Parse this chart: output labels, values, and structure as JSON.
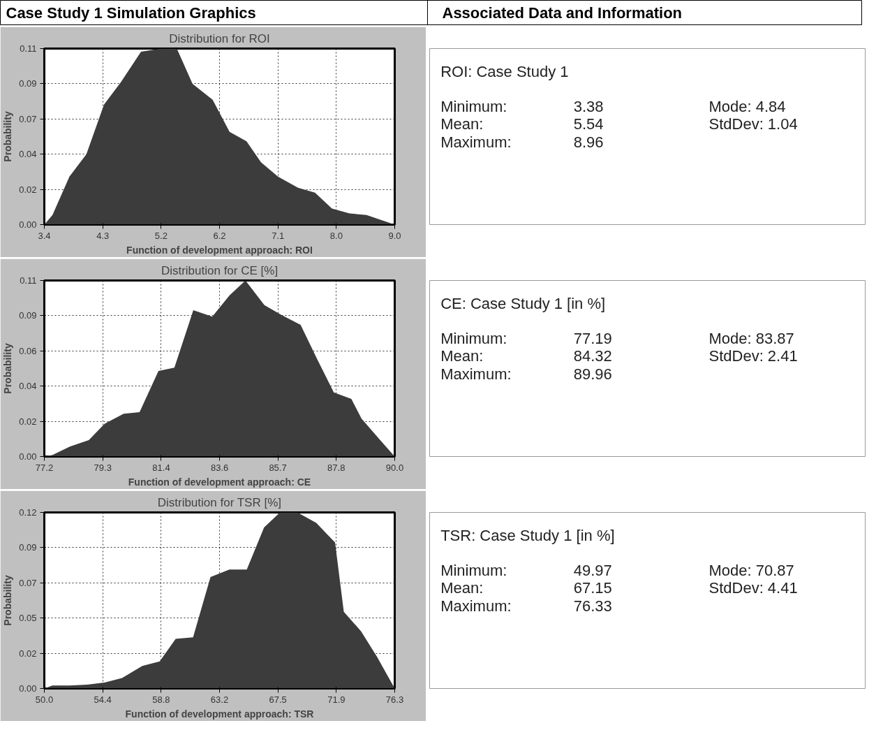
{
  "chart_data": [
    {
      "type": "area",
      "title": "Distribution for ROI",
      "xlabel": "Function of development approach: ROI",
      "ylabel": "Probability",
      "annotations": [
        "Case Study 1 Simulation Graphics"
      ],
      "color": "#3c3c3c",
      "grid": true,
      "x": [
        3.38,
        3.51,
        3.78,
        4.05,
        4.33,
        4.6,
        4.92,
        5.24,
        5.49,
        5.74,
        6.06,
        6.33,
        6.6,
        6.83,
        7.1,
        7.42,
        7.69,
        7.96,
        8.24,
        8.51,
        8.96
      ],
      "values": [
        0,
        0.006,
        0.03,
        0.044,
        0.075,
        0.089,
        0.108,
        0.11,
        0.11,
        0.088,
        0.078,
        0.058,
        0.052,
        0.039,
        0.03,
        0.023,
        0.02,
        0.01,
        0.007,
        0.006,
        0
      ],
      "xlim": [
        3.38,
        8.96
      ],
      "ylim": [
        0,
        0.11
      ],
      "xticks": [
        {
          "value": 3.38,
          "label": "3.4"
        },
        {
          "value": 4.31,
          "label": "4.3"
        },
        {
          "value": 5.24,
          "label": "5.2"
        },
        {
          "value": 6.17,
          "label": "6.2"
        },
        {
          "value": 7.1,
          "label": "7.1"
        },
        {
          "value": 8.03,
          "label": "8.0"
        },
        {
          "value": 8.96,
          "label": "9.0"
        }
      ],
      "yticks": [
        {
          "value": 0,
          "label": "0.00"
        },
        {
          "value": 0.022,
          "label": "0.02"
        },
        {
          "value": 0.044,
          "label": "0.04"
        },
        {
          "value": 0.066,
          "label": "0.07"
        },
        {
          "value": 0.088,
          "label": "0.09"
        },
        {
          "value": 0.11,
          "label": "0.11"
        }
      ]
    },
    {
      "type": "other",
      "title": "Associated Data and Information",
      "subtitle": "ROI: Case Study 1",
      "annotations": [
        "Minimum:",
        "3.38",
        "Mode: 4.84",
        "Mean:",
        "5.54",
        "StdDev: 1.04",
        "Maximum:",
        "8.96"
      ]
    },
    {
      "type": "area",
      "title": "Distribution for CE [%]",
      "xlabel": "Function of development approach: CE",
      "ylabel": "Probability",
      "color": "#3c3c3c",
      "grid": true,
      "x": [
        77.19,
        77.49,
        78.12,
        78.81,
        79.39,
        80.08,
        80.66,
        81.35,
        81.93,
        82.62,
        83.31,
        83.94,
        84.52,
        85.21,
        85.84,
        86.53,
        87.11,
        87.74,
        88.38,
        88.75,
        89.43,
        89.96
      ],
      "values": [
        0,
        0.001,
        0.006,
        0.01,
        0.02,
        0.026,
        0.027,
        0.052,
        0.054,
        0.089,
        0.085,
        0.098,
        0.107,
        0.092,
        0.086,
        0.08,
        0.06,
        0.039,
        0.035,
        0.023,
        0.01,
        0
      ],
      "xlim": [
        77.19,
        89.96
      ],
      "ylim": [
        0,
        0.107
      ],
      "xticks": [
        {
          "value": 77.19,
          "label": "77.2"
        },
        {
          "value": 79.32,
          "label": "79.3"
        },
        {
          "value": 81.45,
          "label": "81.4"
        },
        {
          "value": 83.58,
          "label": "83.6"
        },
        {
          "value": 85.7,
          "label": "85.7"
        },
        {
          "value": 87.83,
          "label": "87.8"
        },
        {
          "value": 89.96,
          "label": "90.0"
        }
      ],
      "yticks": [
        {
          "value": 0,
          "label": "0.00"
        },
        {
          "value": 0.0214,
          "label": "0.02"
        },
        {
          "value": 0.0428,
          "label": "0.04"
        },
        {
          "value": 0.0642,
          "label": "0.06"
        },
        {
          "value": 0.0856,
          "label": "0.09"
        },
        {
          "value": 0.107,
          "label": "0.11"
        }
      ]
    },
    {
      "type": "other",
      "subtitle": "CE: Case Study 1 [in %]",
      "annotations": [
        "Minimum:",
        "77.19",
        "Mode: 83.87",
        "Mean:",
        "84.32",
        "StdDev: 2.41",
        "Maximum:",
        "89.96"
      ]
    },
    {
      "type": "area",
      "title": "Distribution for TSR [%]",
      "xlabel": "Function of development approach: TSR",
      "ylabel": "Probability",
      "color": "#3c3c3c",
      "grid": true,
      "x": [
        49.97,
        50.58,
        51.89,
        53.2,
        54.51,
        55.82,
        57.34,
        58.65,
        59.85,
        61.16,
        62.47,
        63.89,
        65.2,
        66.5,
        67.7,
        69.01,
        70.43,
        71.84,
        72.5,
        73.8,
        75.0,
        76.33
      ],
      "values": [
        0,
        0.002,
        0.002,
        0.0025,
        0.004,
        0.007,
        0.015,
        0.018,
        0.033,
        0.034,
        0.074,
        0.079,
        0.079,
        0.107,
        0.117,
        0.117,
        0.11,
        0.097,
        0.051,
        0.038,
        0.021,
        0
      ],
      "xlim": [
        49.97,
        76.33
      ],
      "ylim": [
        0,
        0.117
      ],
      "xticks": [
        {
          "value": 49.97,
          "label": "50.0"
        },
        {
          "value": 54.36,
          "label": "54.4"
        },
        {
          "value": 58.76,
          "label": "58.8"
        },
        {
          "value": 63.15,
          "label": "63.2"
        },
        {
          "value": 67.54,
          "label": "67.5"
        },
        {
          "value": 71.94,
          "label": "71.9"
        },
        {
          "value": 76.33,
          "label": "76.3"
        }
      ],
      "yticks": [
        {
          "value": 0,
          "label": "0.00"
        },
        {
          "value": 0.0234,
          "label": "0.02"
        },
        {
          "value": 0.0468,
          "label": "0.05"
        },
        {
          "value": 0.0702,
          "label": "0.07"
        },
        {
          "value": 0.0936,
          "label": "0.09"
        },
        {
          "value": 0.117,
          "label": "0.12"
        }
      ]
    },
    {
      "type": "other",
      "subtitle": "TSR: Case Study 1 [in %]",
      "annotations": [
        "Minimum:",
        "49.97",
        "Mode: 70.87",
        "Mean:",
        "67.15",
        "StdDev: 4.41",
        "Maximum:",
        "76.33"
      ]
    }
  ]
}
